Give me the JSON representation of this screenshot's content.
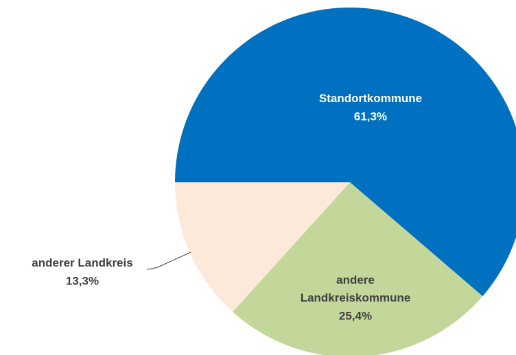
{
  "chart_data": {
    "type": "pie",
    "categories": [
      "Standortkommune",
      "andere Landkreiskommune",
      "anderer Landkreis"
    ],
    "values": [
      61.3,
      25.4,
      13.3
    ],
    "value_labels": [
      "61,3%",
      "25,4%",
      "13,3%"
    ],
    "colors": [
      "#0070c0",
      "#c4d79b",
      "#fde9d9"
    ],
    "label_colors": [
      "#ffffff",
      "#404040",
      "#404040"
    ]
  }
}
